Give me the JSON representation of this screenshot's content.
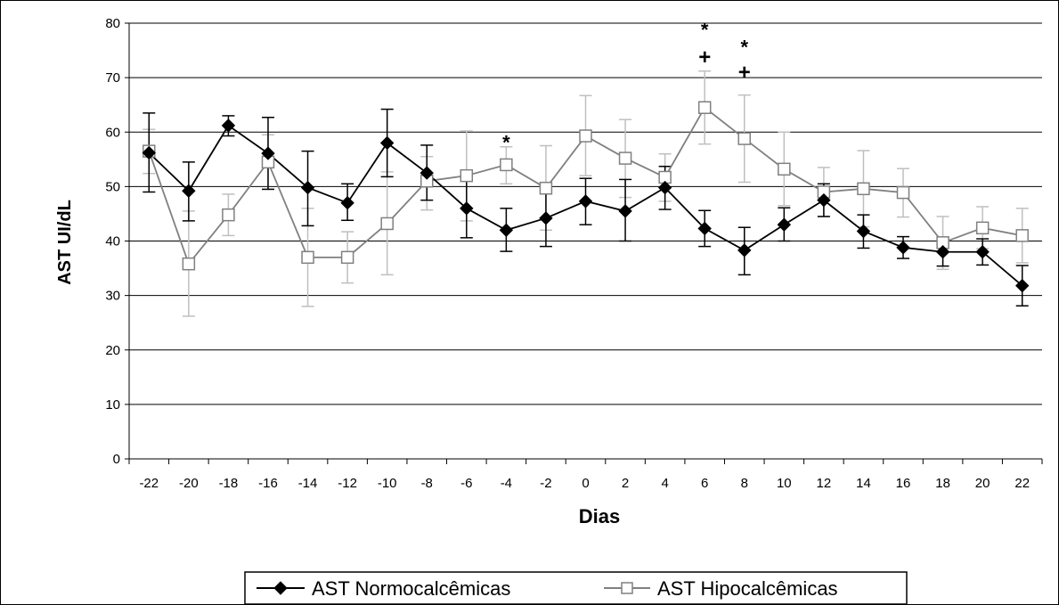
{
  "chart_data": {
    "type": "line",
    "title": "",
    "xlabel": "Dias",
    "ylabel": "AST UI/dL",
    "ylim": [
      0,
      80
    ],
    "yticks": [
      0,
      10,
      20,
      30,
      40,
      50,
      60,
      70,
      80
    ],
    "categories": [
      "-22",
      "-20",
      "-18",
      "-16",
      "-14",
      "-12",
      "-10",
      "-8",
      "-6",
      "-4",
      "-2",
      "0",
      "2",
      "4",
      "6",
      "8",
      "10",
      "12",
      "14",
      "16",
      "18",
      "20",
      "22"
    ],
    "x": [
      -22,
      -20,
      -18,
      -16,
      -14,
      -12,
      -10,
      -8,
      -6,
      -4,
      -2,
      0,
      2,
      4,
      6,
      8,
      10,
      12,
      14,
      16,
      18,
      20,
      22
    ],
    "grid": "horizontal",
    "legend_position": "bottom",
    "series": [
      {
        "name": "AST Normocalcêmicas",
        "color": "#000000",
        "marker": "filled-diamond",
        "values": [
          56.2,
          49.2,
          61.2,
          56.1,
          49.8,
          47.0,
          58.0,
          52.5,
          46.0,
          42.0,
          44.2,
          47.3,
          45.5,
          49.8,
          42.3,
          38.3,
          43.0,
          47.5,
          41.8,
          38.8,
          38.0,
          38.0,
          31.8
        ],
        "error_upper": [
          63.5,
          54.5,
          63.0,
          62.7,
          56.5,
          50.5,
          64.2,
          57.6,
          51.5,
          46.0,
          49.0,
          51.5,
          51.3,
          53.7,
          45.6,
          42.5,
          46.1,
          50.5,
          44.8,
          40.8,
          40.6,
          40.4,
          35.5
        ],
        "error_lower": [
          49.0,
          43.7,
          59.3,
          49.5,
          42.8,
          43.8,
          51.8,
          47.5,
          40.6,
          38.1,
          39.0,
          43.0,
          40.0,
          45.8,
          39.0,
          33.8,
          40.0,
          44.5,
          38.7,
          36.8,
          35.4,
          35.6,
          28.1
        ]
      },
      {
        "name": "AST Hipocalcêmicas",
        "color": "#808080",
        "error_color": "#bfbfbf",
        "marker": "open-square",
        "values": [
          56.5,
          35.8,
          44.8,
          54.5,
          37.0,
          37.0,
          43.2,
          51.0,
          52.0,
          54.0,
          49.7,
          59.3,
          55.2,
          51.7,
          64.5,
          58.8,
          53.2,
          49.0,
          49.6,
          48.9,
          39.7,
          42.4,
          41.0
        ],
        "error_upper": [
          60.5,
          45.5,
          48.6,
          59.5,
          46.0,
          41.7,
          52.7,
          55.5,
          60.2,
          57.3,
          57.5,
          66.7,
          62.3,
          56.0,
          71.2,
          66.8,
          60.0,
          53.5,
          56.6,
          53.3,
          44.5,
          46.3,
          46.0
        ],
        "error_lower": [
          52.4,
          26.2,
          41.0,
          49.5,
          28.0,
          32.3,
          33.8,
          45.7,
          43.7,
          50.5,
          42.0,
          52.0,
          48.0,
          47.3,
          57.8,
          50.8,
          46.5,
          44.5,
          42.6,
          44.4,
          34.8,
          38.6,
          36.0
        ]
      }
    ],
    "annotations": [
      {
        "text": "*",
        "x": -4,
        "y": 58.8
      },
      {
        "text": "*",
        "x": 6,
        "y": 79.5
      },
      {
        "text": "+",
        "x": 6,
        "y": 73.8
      },
      {
        "text": "*",
        "x": 8,
        "y": 76.3
      },
      {
        "text": "+",
        "x": 8,
        "y": 71.0
      }
    ]
  }
}
